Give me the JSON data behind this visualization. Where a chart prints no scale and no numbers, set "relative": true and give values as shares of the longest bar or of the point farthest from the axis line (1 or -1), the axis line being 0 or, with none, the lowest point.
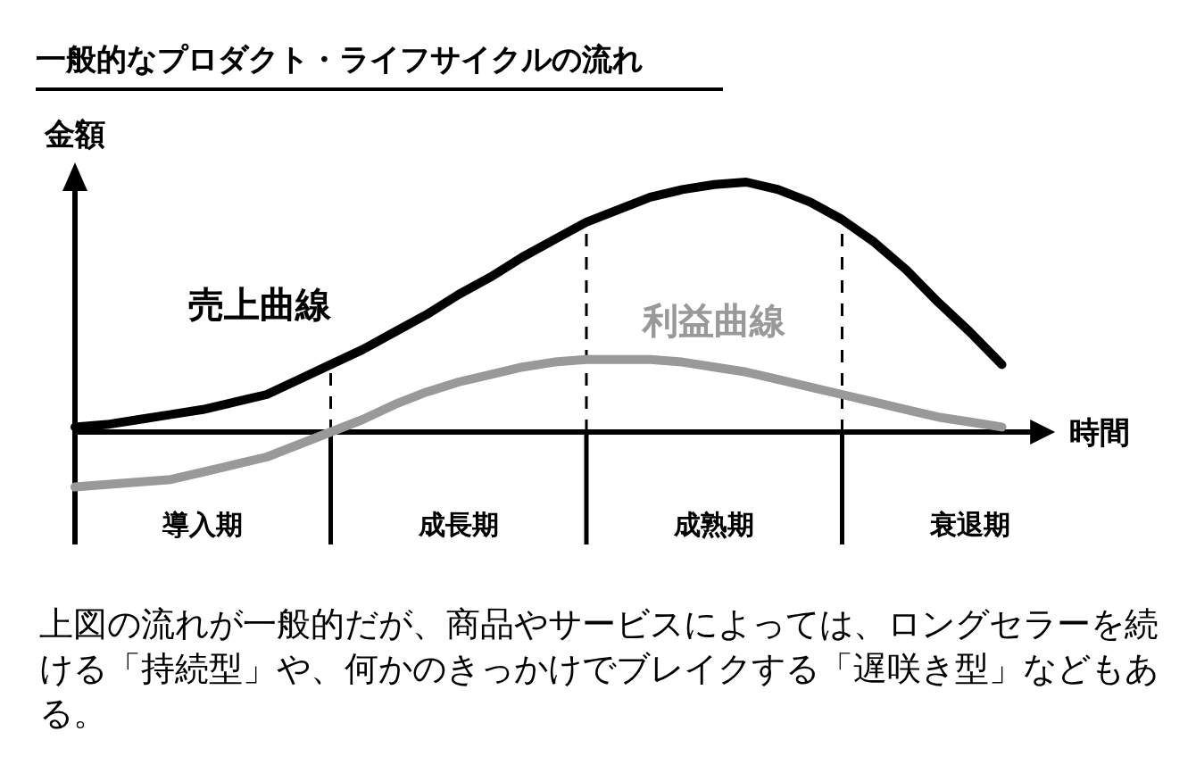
{
  "chart_data": {
    "type": "line",
    "title": "一般的なプロダクト・ライフサイクルの流れ",
    "xlabel": "時間",
    "ylabel": "金額",
    "relative": true,
    "tick_labels": "x",
    "marker": "none",
    "line_style": "solid",
    "categories": [
      null,
      null,
      null,
      null,
      "導入期",
      null,
      null,
      null,
      null,
      null,
      null,
      null,
      "成長期",
      null,
      null,
      null,
      null,
      null,
      null,
      null,
      "成熟期",
      null,
      null,
      null,
      null,
      null,
      null,
      null,
      "衰退期",
      null,
      null,
      null,
      null
    ],
    "series": [
      {
        "name": "売上曲線",
        "color": "#000000",
        "values": [
          0.02,
          0.03,
          0.05,
          0.07,
          0.09,
          0.12,
          0.15,
          0.21,
          0.27,
          0.33,
          0.4,
          0.47,
          0.55,
          0.62,
          0.7,
          0.77,
          0.84,
          0.89,
          0.94,
          0.97,
          0.99,
          1,
          0.97,
          0.92,
          0.85,
          0.76,
          0.65,
          0.52,
          0.4,
          0.27,
          null,
          null,
          null
        ]
      },
      {
        "name": "利益曲線",
        "color": "#999999",
        "values": [
          -0.22,
          -0.21,
          -0.2,
          -0.19,
          -0.16,
          -0.13,
          -0.1,
          -0.05,
          0,
          0.05,
          0.11,
          0.16,
          0.2,
          0.23,
          0.26,
          0.28,
          0.29,
          0.29,
          0.29,
          0.28,
          0.26,
          0.24,
          0.21,
          0.18,
          0.15,
          0.12,
          0.09,
          0.06,
          0.04,
          0.02,
          null,
          null,
          null
        ]
      }
    ],
    "annotations": [
      "上図の流れが一般的だが、商品やサービスによっては、ロングセラーを続ける「持続型」や、何かのきっかけでブレイクする「遅咲き型」などもある。"
    ]
  }
}
